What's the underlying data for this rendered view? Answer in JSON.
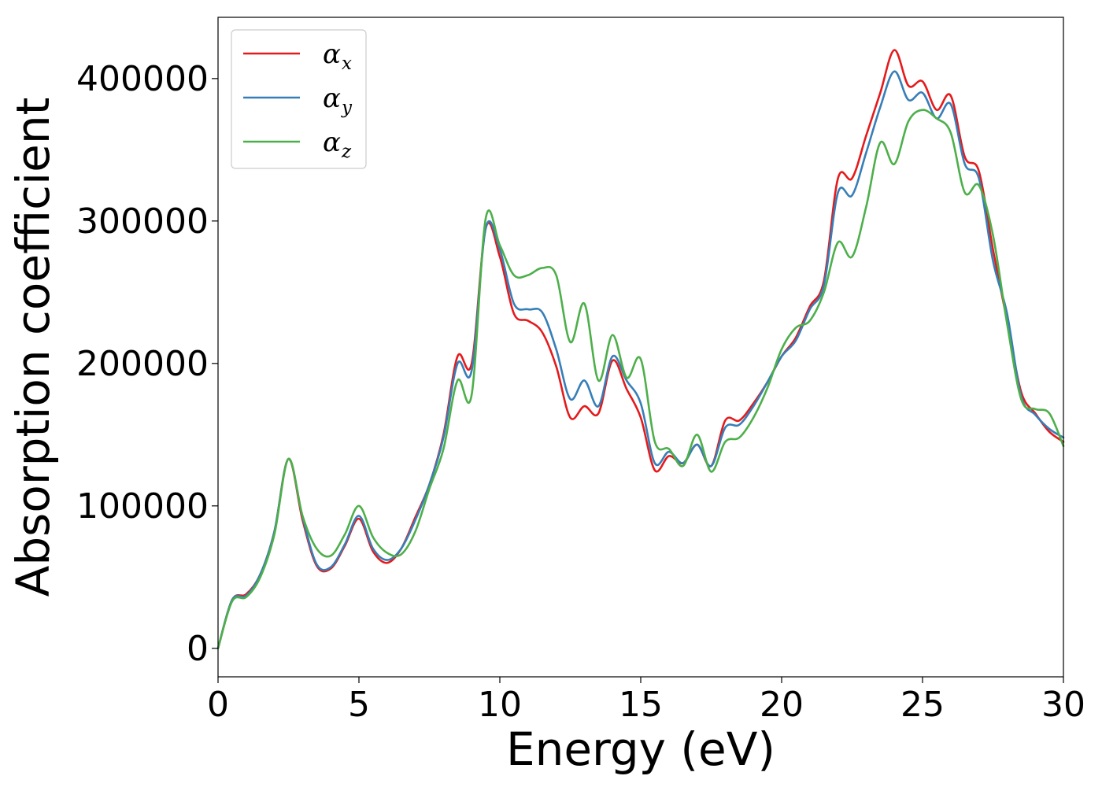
{
  "chart_data": {
    "type": "line",
    "title": "",
    "xlabel": "Energy (eV)",
    "ylabel": "Absorption coefficient",
    "xlim": [
      0,
      30
    ],
    "ylim": [
      -20000,
      443000
    ],
    "xticks": [
      0,
      5,
      10,
      15,
      20,
      25,
      30
    ],
    "xtick_labels": [
      "0",
      "5",
      "10",
      "15",
      "20",
      "25",
      "30"
    ],
    "yticks": [
      0,
      100000,
      200000,
      300000,
      400000
    ],
    "ytick_labels": [
      "0",
      "100000",
      "200000",
      "300000",
      "400000"
    ],
    "grid": false,
    "legend": {
      "placement": "top-left"
    },
    "x": [
      0,
      0.5,
      1,
      1.5,
      2,
      2.5,
      3,
      3.5,
      4,
      4.5,
      5,
      5.5,
      6,
      6.5,
      7,
      7.5,
      8,
      8.5,
      9,
      9.5,
      10,
      10.5,
      11,
      11.5,
      12,
      12.5,
      13,
      13.5,
      14,
      14.5,
      15,
      15.5,
      16,
      16.5,
      17,
      17.5,
      18,
      18.5,
      19,
      19.5,
      20,
      20.5,
      21,
      21.5,
      22,
      22.5,
      23,
      23.5,
      24,
      24.5,
      25,
      25.5,
      26,
      26.5,
      27,
      27.5,
      28,
      28.5,
      29,
      29.5,
      30
    ],
    "series": [
      {
        "name": "α",
        "subscript": "x",
        "color": "#e41a1c",
        "values": [
          0,
          34000,
          38000,
          52000,
          82000,
          133000,
          90000,
          58000,
          56000,
          72000,
          91000,
          68000,
          60000,
          70000,
          92000,
          115000,
          150000,
          205000,
          200000,
          295000,
          275000,
          235000,
          230000,
          222000,
          198000,
          162000,
          170000,
          165000,
          202000,
          182000,
          162000,
          125000,
          135000,
          130000,
          143000,
          128000,
          160000,
          160000,
          172000,
          187000,
          205000,
          218000,
          240000,
          258000,
          330000,
          330000,
          360000,
          390000,
          420000,
          395000,
          398000,
          378000,
          388000,
          345000,
          335000,
          280000,
          230000,
          180000,
          165000,
          152000,
          145000
        ]
      },
      {
        "name": "α",
        "subscript": "y",
        "color": "#377eb8",
        "values": [
          0,
          34000,
          37000,
          52000,
          82000,
          133000,
          92000,
          59000,
          57000,
          73000,
          93000,
          70000,
          62000,
          70000,
          90000,
          115000,
          148000,
          200000,
          195000,
          295000,
          280000,
          242000,
          238000,
          236000,
          210000,
          175000,
          188000,
          170000,
          205000,
          188000,
          172000,
          130000,
          138000,
          130000,
          143000,
          128000,
          155000,
          157000,
          170000,
          187000,
          205000,
          216000,
          238000,
          255000,
          320000,
          318000,
          348000,
          380000,
          405000,
          385000,
          390000,
          372000,
          382000,
          340000,
          330000,
          272000,
          235000,
          177000,
          164000,
          154000,
          148000
        ]
      },
      {
        "name": "α",
        "subscript": "z",
        "color": "#4daf4a",
        "values": [
          0,
          33000,
          36000,
          50000,
          80000,
          133000,
          93000,
          70000,
          65000,
          80000,
          100000,
          78000,
          67000,
          66000,
          82000,
          112000,
          140000,
          188000,
          178000,
          302000,
          283000,
          262000,
          262000,
          267000,
          262000,
          215000,
          242000,
          188000,
          220000,
          190000,
          203000,
          145000,
          140000,
          128000,
          150000,
          124000,
          145000,
          148000,
          162000,
          183000,
          210000,
          225000,
          230000,
          250000,
          285000,
          275000,
          310000,
          355000,
          340000,
          370000,
          378000,
          372000,
          362000,
          320000,
          325000,
          290000,
          228000,
          175000,
          168000,
          165000,
          142000
        ]
      }
    ]
  }
}
